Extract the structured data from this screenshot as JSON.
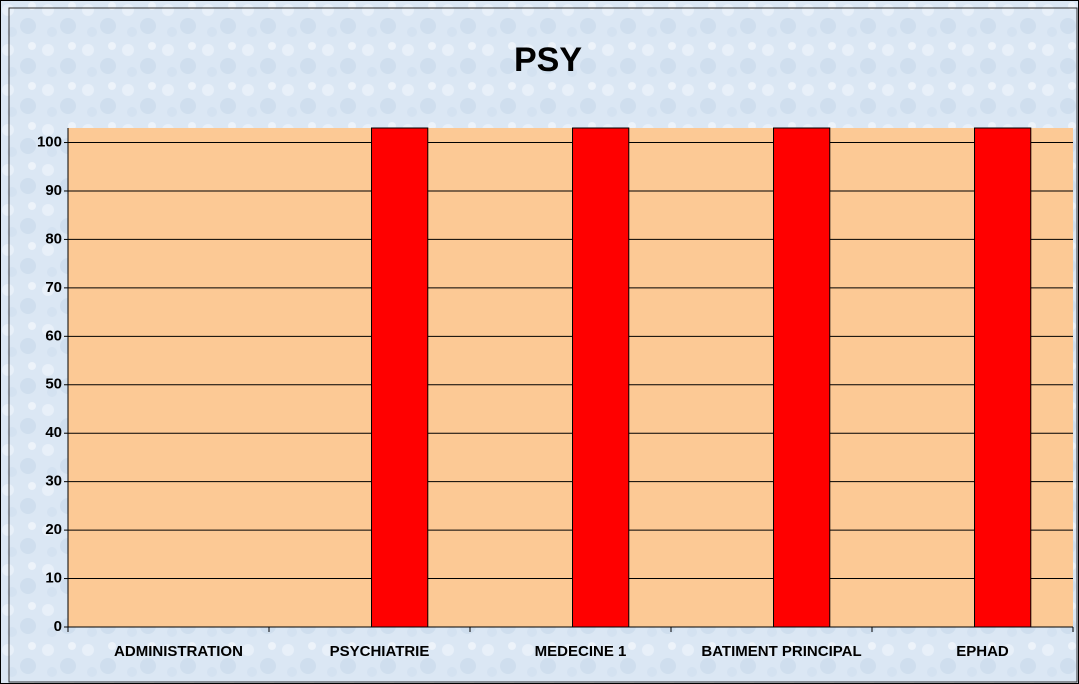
{
  "chart_data": {
    "type": "bar",
    "title": "PSY",
    "categories": [
      "ADMINISTRATION",
      "PSYCHIATRIE",
      "MEDECINE 1",
      "BATIMENT PRINCIPAL",
      "EPHAD"
    ],
    "values": [
      0,
      103,
      103,
      103,
      103
    ],
    "color": "#ff0000",
    "ylim": [
      0,
      103
    ],
    "yticks": [
      0,
      10,
      20,
      30,
      40,
      50,
      60,
      70,
      80,
      90,
      100
    ],
    "grid": true
  }
}
